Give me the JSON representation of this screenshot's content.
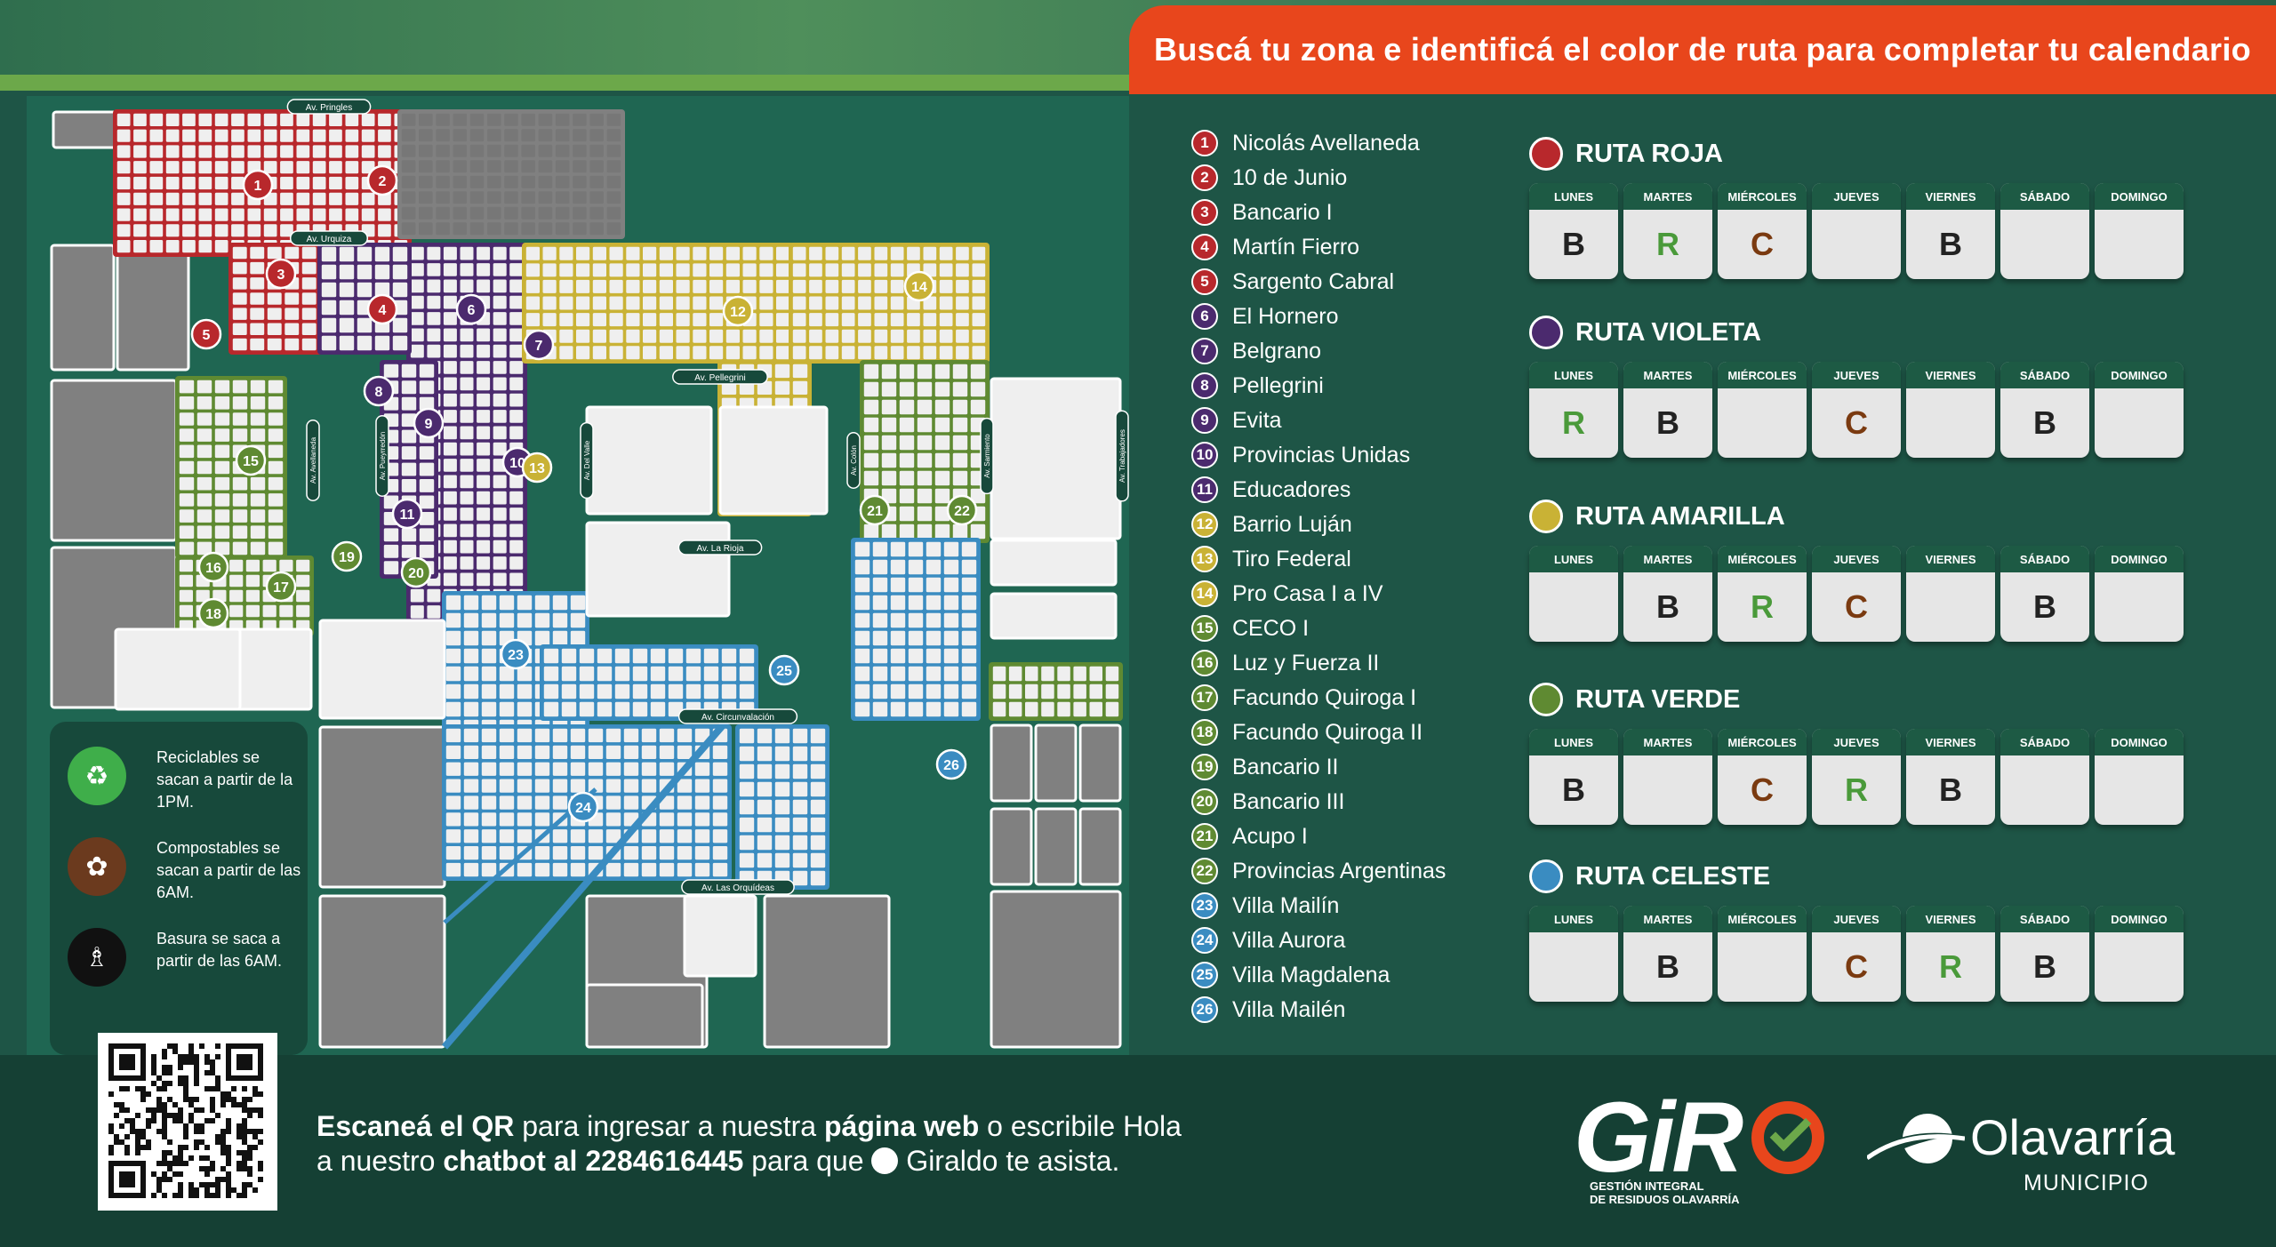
{
  "title": "Buscá tu zona e identificá el color de ruta para completar tu calendario",
  "colors": {
    "roja": "#b8282c",
    "violeta": "#4b2a6e",
    "amarilla": "#c9b235",
    "verde": "#5f8a32",
    "celeste": "#3a8cc1",
    "orange": "#e8461c",
    "code_R": "#4a9a3a",
    "code_C": "#7a3a10",
    "code_B": "#222222"
  },
  "map": {
    "avenues": [
      "Av. Pringles",
      "Av. Urquiza",
      "Av. Pellegrini",
      "Av. La Rioja",
      "Av. Circunvalación",
      "Av. Las Orquídeas",
      "Av. Avellaneda",
      "Av. Pueyrredón",
      "Av. Del Valle",
      "Av. Colón",
      "Av. Sarmiento",
      "Av. Trabajadores"
    ]
  },
  "legend": [
    {
      "icon": "recycle-icon",
      "text": "Reciclables se sacan a partir de la 1PM."
    },
    {
      "icon": "leaf-icon",
      "text": "Compostables se sacan a partir de las 6AM."
    },
    {
      "icon": "trash-bag-icon",
      "text": "Basura se saca a partir de las 6AM."
    }
  ],
  "zones": [
    {
      "num": "1",
      "name": "Nicolás Avellaneda",
      "route": "roja"
    },
    {
      "num": "2",
      "name": "10 de Junio",
      "route": "roja"
    },
    {
      "num": "3",
      "name": "Bancario I",
      "route": "roja"
    },
    {
      "num": "4",
      "name": "Martín Fierro",
      "route": "roja"
    },
    {
      "num": "5",
      "name": "Sargento Cabral",
      "route": "roja"
    },
    {
      "num": "6",
      "name": "El Hornero",
      "route": "violeta"
    },
    {
      "num": "7",
      "name": "Belgrano",
      "route": "violeta"
    },
    {
      "num": "8",
      "name": "Pellegrini",
      "route": "violeta"
    },
    {
      "num": "9",
      "name": "Evita",
      "route": "violeta"
    },
    {
      "num": "10",
      "name": "Provincias Unidas",
      "route": "violeta"
    },
    {
      "num": "11",
      "name": "Educadores",
      "route": "violeta"
    },
    {
      "num": "12",
      "name": "Barrio Luján",
      "route": "amarilla"
    },
    {
      "num": "13",
      "name": "Tiro Federal",
      "route": "amarilla"
    },
    {
      "num": "14",
      "name": "Pro Casa I a IV",
      "route": "amarilla"
    },
    {
      "num": "15",
      "name": "CECO I",
      "route": "verde"
    },
    {
      "num": "16",
      "name": "Luz y Fuerza II",
      "route": "verde"
    },
    {
      "num": "17",
      "name": "Facundo Quiroga I",
      "route": "verde"
    },
    {
      "num": "18",
      "name": "Facundo Quiroga II",
      "route": "verde"
    },
    {
      "num": "19",
      "name": "Bancario II",
      "route": "verde"
    },
    {
      "num": "20",
      "name": "Bancario III",
      "route": "verde"
    },
    {
      "num": "21",
      "name": "Acupo I",
      "route": "verde"
    },
    {
      "num": "22",
      "name": "Provincias Argentinas",
      "route": "verde"
    },
    {
      "num": "23",
      "name": "Villa Mailín",
      "route": "celeste"
    },
    {
      "num": "24",
      "name": "Villa Aurora",
      "route": "celeste"
    },
    {
      "num": "25",
      "name": "Villa Magdalena",
      "route": "celeste"
    },
    {
      "num": "26",
      "name": "Villa Mailén",
      "route": "celeste"
    }
  ],
  "days": [
    "LUNES",
    "MARTES",
    "MIÉRCOLES",
    "JUEVES",
    "VIERNES",
    "SÁBADO",
    "DOMINGO"
  ],
  "routes": [
    {
      "name": "RUTA ROJA",
      "key": "roja",
      "codes": [
        "B",
        "R",
        "C",
        "",
        "B",
        "",
        ""
      ]
    },
    {
      "name": "RUTA VIOLETA",
      "key": "violeta",
      "codes": [
        "R",
        "B",
        "",
        "C",
        "",
        "B",
        ""
      ]
    },
    {
      "name": "RUTA AMARILLA",
      "key": "amarilla",
      "codes": [
        "",
        "B",
        "R",
        "C",
        "",
        "B",
        ""
      ]
    },
    {
      "name": "RUTA VERDE",
      "key": "verde",
      "codes": [
        "B",
        "",
        "C",
        "R",
        "B",
        "",
        ""
      ]
    },
    {
      "name": "RUTA CELESTE",
      "key": "celeste",
      "codes": [
        "",
        "B",
        "",
        "C",
        "R",
        "B",
        ""
      ]
    }
  ],
  "footer": {
    "line1_bold1": "Escaneá el QR",
    "line1_text1": " para ingresar a nuestra ",
    "line1_bold2": "página web",
    "line1_text2": " o escribile Hola",
    "line2_text1": "a nuestro ",
    "line2_bold1": "chatbot al 2284616445",
    "line2_text2": " para que ",
    "line2_text3": " Giraldo te asista."
  },
  "logos": {
    "giro": "GiRO",
    "giro_tagline_1": "GESTIÓN INTEGRAL",
    "giro_tagline_2": "DE RESIDUOS OLAVARRÍA",
    "olavarria": "Olavarría",
    "olavarria_sub": "MUNICIPIO"
  }
}
